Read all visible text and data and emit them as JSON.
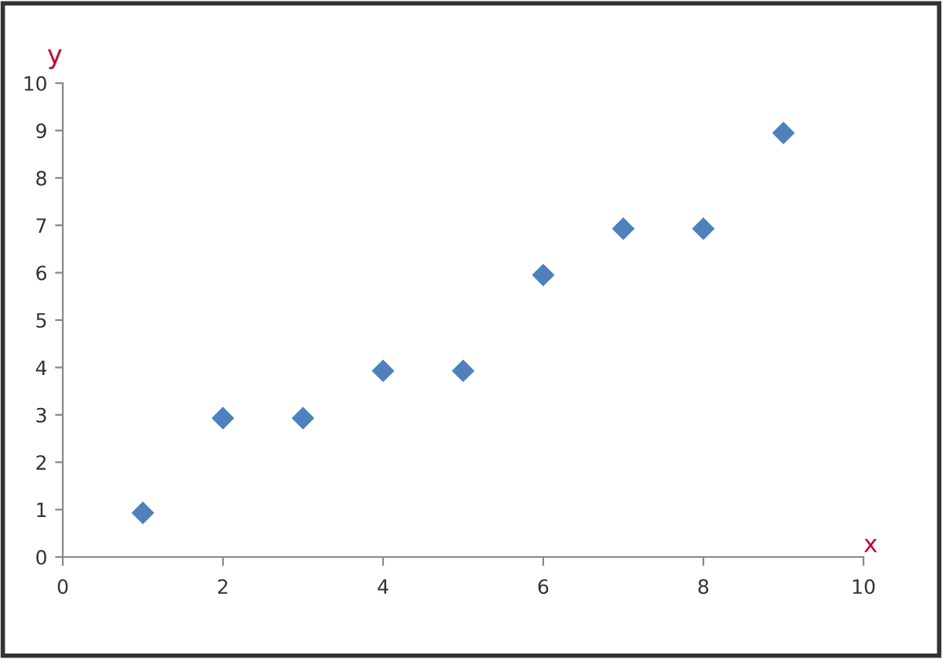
{
  "chart_data": {
    "type": "scatter",
    "xlabel": "x",
    "ylabel": "y",
    "x": [
      1,
      2,
      3,
      4,
      5,
      6,
      7,
      8,
      9
    ],
    "series": [
      {
        "color": "#4f81bd",
        "values": [
          0.93,
          2.93,
          2.93,
          3.93,
          3.93,
          5.95,
          6.93,
          6.93,
          8.95
        ]
      }
    ],
    "marker": "diamond",
    "xlim": [
      0,
      10
    ],
    "ylim": [
      0,
      10
    ],
    "xticks": [
      0,
      2,
      4,
      6,
      8,
      10
    ],
    "yticks": [
      0,
      1,
      2,
      3,
      4,
      5,
      6,
      7,
      8,
      9,
      10
    ],
    "grid": false,
    "legend": false
  }
}
